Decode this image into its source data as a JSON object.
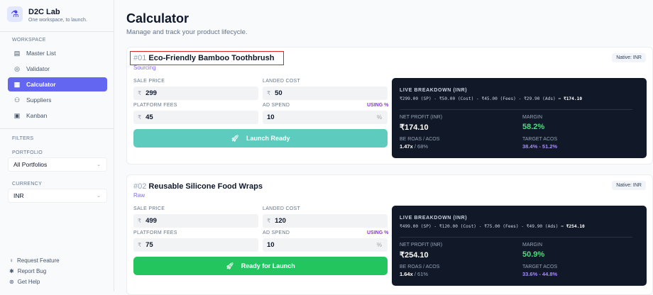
{
  "sidebar": {
    "brand": "D2C Lab",
    "tagline": "One workspace, to launch.",
    "workspace_label": "WORKSPACE",
    "items": [
      {
        "label": "Master List",
        "icon": "clipboard-icon"
      },
      {
        "label": "Validator",
        "icon": "check-circle-icon"
      },
      {
        "label": "Calculator",
        "icon": "calculator-icon",
        "active": true
      },
      {
        "label": "Suppliers",
        "icon": "users-icon"
      },
      {
        "label": "Kanban",
        "icon": "grid-icon"
      }
    ],
    "filters_label": "FILTERS",
    "portfolio_label": "PORTFOLIO",
    "portfolio_value": "All Portfolios",
    "currency_label": "CURRENCY",
    "currency_value": "INR",
    "footer": [
      {
        "label": "Request Feature",
        "icon": "lightbulb-icon"
      },
      {
        "label": "Report Bug",
        "icon": "bug-icon"
      },
      {
        "label": "Get Help",
        "icon": "help-icon"
      }
    ]
  },
  "header": {
    "title": "Calculator",
    "subtitle": "Manage and track your product lifecycle."
  },
  "labels": {
    "sale_price": "SALE PRICE",
    "landed_cost": "LANDED COST",
    "platform_fees": "PLATFORM FEES",
    "ad_spend": "AD SPEND",
    "using": "USING %",
    "currency_symbol": "₹",
    "percent": "%",
    "breakdown": "LIVE BREAKDOWN (INR)",
    "net_profit": "NET PROFIT (INR)",
    "margin": "MARGIN",
    "be_roas": "BE ROAS / ACOS",
    "target_acos": "TARGET ACOS"
  },
  "colors": {
    "accent": "#6366f1",
    "teal_button": "#5ecbbf",
    "green_button": "#22c55e",
    "margin_green": "#4ade80",
    "acos_purple": "#a78bfa"
  },
  "products": [
    {
      "num": "#01",
      "name": "Eco-Friendly Bamboo Toothbrush",
      "status": "Sourcing",
      "native": "Native: INR",
      "sale_price": "299",
      "landed_cost": "50",
      "platform_fees": "45",
      "ad_spend": "10",
      "button": "Launch Ready",
      "formula": "₹299.00 (SP) - ₹50.00 (Cost) - ₹45.00 (Fees) - ₹29.90 (Ads) = ",
      "formula_result": "₹174.10",
      "net_profit": "₹174.10",
      "margin": "58.2%",
      "be_roas": "1.47x",
      "be_acos": " / 68%",
      "target_acos": "38.4% - 51.2%"
    },
    {
      "num": "#02",
      "name": "Reusable Silicone Food Wraps",
      "status": "Raw",
      "native": "Native: INR",
      "sale_price": "499",
      "landed_cost": "120",
      "platform_fees": "75",
      "ad_spend": "10",
      "button": "Ready for Launch",
      "formula": "₹499.00 (SP) - ₹120.00 (Cost) - ₹75.00 (Fees) - ₹49.90 (Ads) = ",
      "formula_result": "₹254.10",
      "net_profit": "₹254.10",
      "margin": "50.9%",
      "be_roas": "1.64x",
      "be_acos": " / 61%",
      "target_acos": "33.6% - 44.8%"
    }
  ]
}
